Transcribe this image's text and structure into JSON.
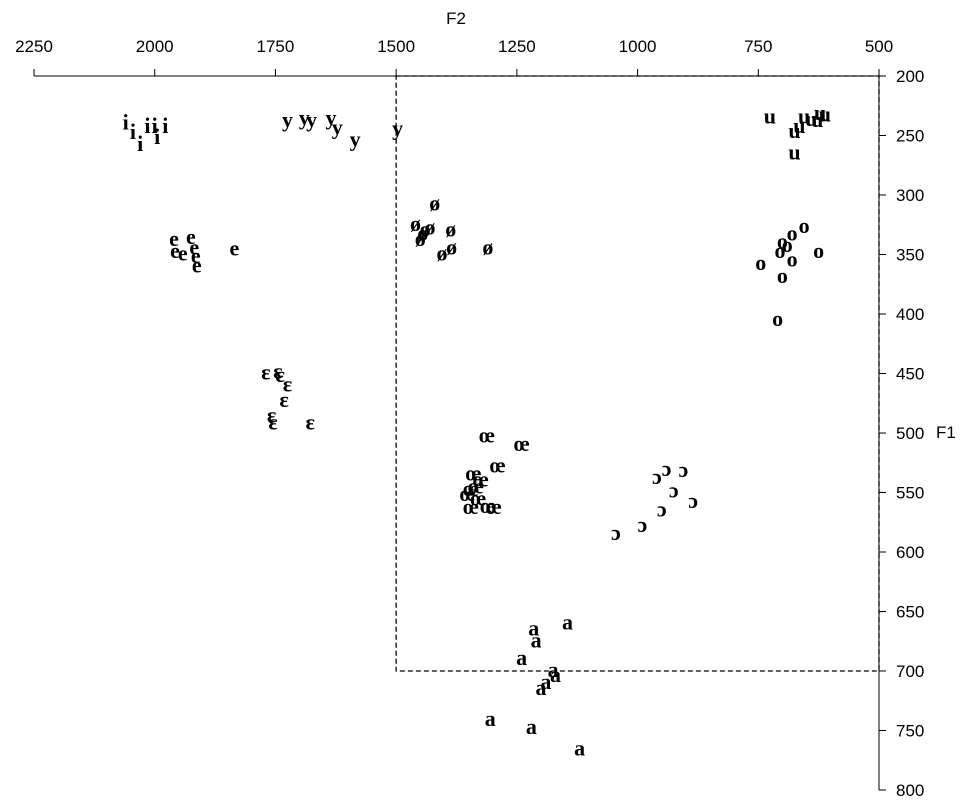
{
  "chart_data": {
    "type": "scatter",
    "title": "",
    "xlabel": "F2",
    "ylabel": "F1",
    "xlim": [
      2250,
      500
    ],
    "ylim": [
      200,
      800
    ],
    "x_reversed": true,
    "y_reversed": true,
    "x_axis_position": "top",
    "y_axis_position": "right",
    "grid": false,
    "legend": "none",
    "x_ticks": [
      "2250",
      "2000",
      "1750",
      "1500",
      "1250",
      "1000",
      "750",
      "500"
    ],
    "y_ticks": [
      "200",
      "250",
      "300",
      "350",
      "400",
      "450",
      "500",
      "550",
      "600",
      "650",
      "700",
      "750",
      "800"
    ],
    "region": {
      "f2_range": [
        1500,
        500
      ],
      "f1_range": [
        200,
        700
      ],
      "style": "dashed"
    },
    "points": [
      {
        "label": "i",
        "f2": 2060,
        "f1": 240
      },
      {
        "label": "i",
        "f2": 2045,
        "f1": 248
      },
      {
        "label": "i",
        "f2": 2030,
        "f1": 258
      },
      {
        "label": "i",
        "f2": 2015,
        "f1": 243
      },
      {
        "label": "i",
        "f2": 2000,
        "f1": 243
      },
      {
        "label": "i",
        "f2": 1995,
        "f1": 252
      },
      {
        "label": "i",
        "f2": 1978,
        "f1": 243
      },
      {
        "label": "y",
        "f2": 1725,
        "f1": 238
      },
      {
        "label": "y",
        "f2": 1690,
        "f1": 236
      },
      {
        "label": "y",
        "f2": 1675,
        "f1": 238
      },
      {
        "label": "y",
        "f2": 1635,
        "f1": 236
      },
      {
        "label": "y",
        "f2": 1622,
        "f1": 244
      },
      {
        "label": "y",
        "f2": 1585,
        "f1": 254
      },
      {
        "label": "y",
        "f2": 1497,
        "f1": 245
      },
      {
        "label": "e",
        "f2": 1960,
        "f1": 338
      },
      {
        "label": "e",
        "f2": 1958,
        "f1": 348
      },
      {
        "label": "e",
        "f2": 1942,
        "f1": 350
      },
      {
        "label": "e",
        "f2": 1925,
        "f1": 336
      },
      {
        "label": "e",
        "f2": 1918,
        "f1": 345
      },
      {
        "label": "e",
        "f2": 1915,
        "f1": 352
      },
      {
        "label": "e",
        "f2": 1913,
        "f1": 360
      },
      {
        "label": "e",
        "f2": 1835,
        "f1": 346
      },
      {
        "label": "ø",
        "f2": 1460,
        "f1": 325
      },
      {
        "label": "ø",
        "f2": 1420,
        "f1": 308
      },
      {
        "label": "ø",
        "f2": 1387,
        "f1": 330
      },
      {
        "label": "ø",
        "f2": 1385,
        "f1": 345
      },
      {
        "label": "ø",
        "f2": 1310,
        "f1": 345
      },
      {
        "label": "ø",
        "f2": 1405,
        "f1": 350
      },
      {
        "label": "ø",
        "f2": 1430,
        "f1": 328
      },
      {
        "label": "ø",
        "f2": 1440,
        "f1": 330
      },
      {
        "label": "ø",
        "f2": 1445,
        "f1": 333
      },
      {
        "label": "ø",
        "f2": 1450,
        "f1": 338
      },
      {
        "label": "u",
        "f2": 726,
        "f1": 235
      },
      {
        "label": "u",
        "f2": 675,
        "f1": 247
      },
      {
        "label": "u",
        "f2": 665,
        "f1": 243
      },
      {
        "label": "u",
        "f2": 655,
        "f1": 235
      },
      {
        "label": "u",
        "f2": 640,
        "f1": 237
      },
      {
        "label": "u",
        "f2": 628,
        "f1": 238
      },
      {
        "label": "u",
        "f2": 622,
        "f1": 232
      },
      {
        "label": "u",
        "f2": 612,
        "f1": 233
      },
      {
        "label": "u",
        "f2": 675,
        "f1": 265
      },
      {
        "label": "o",
        "f2": 655,
        "f1": 327
      },
      {
        "label": "o",
        "f2": 680,
        "f1": 333
      },
      {
        "label": "o",
        "f2": 700,
        "f1": 340
      },
      {
        "label": "o",
        "f2": 690,
        "f1": 343
      },
      {
        "label": "o",
        "f2": 705,
        "f1": 348
      },
      {
        "label": "o",
        "f2": 680,
        "f1": 355
      },
      {
        "label": "o",
        "f2": 745,
        "f1": 358
      },
      {
        "label": "o",
        "f2": 625,
        "f1": 348
      },
      {
        "label": "o",
        "f2": 700,
        "f1": 369
      },
      {
        "label": "o",
        "f2": 710,
        "f1": 405
      },
      {
        "label": "ɛ",
        "f2": 1770,
        "f1": 450
      },
      {
        "label": "ɛ",
        "f2": 1745,
        "f1": 449
      },
      {
        "label": "ɛ",
        "f2": 1740,
        "f1": 452
      },
      {
        "label": "ɛ",
        "f2": 1725,
        "f1": 460
      },
      {
        "label": "ɛ",
        "f2": 1732,
        "f1": 473
      },
      {
        "label": "ɛ",
        "f2": 1758,
        "f1": 486
      },
      {
        "label": "ɛ",
        "f2": 1755,
        "f1": 492
      },
      {
        "label": "ɛ",
        "f2": 1678,
        "f1": 492
      },
      {
        "label": "œ",
        "f2": 1312,
        "f1": 503
      },
      {
        "label": "œ",
        "f2": 1240,
        "f1": 510
      },
      {
        "label": "œ",
        "f2": 1290,
        "f1": 528
      },
      {
        "label": "œ",
        "f2": 1340,
        "f1": 535
      },
      {
        "label": "œ",
        "f2": 1325,
        "f1": 540
      },
      {
        "label": "œ",
        "f2": 1335,
        "f1": 546
      },
      {
        "label": "œ",
        "f2": 1345,
        "f1": 548
      },
      {
        "label": "œ",
        "f2": 1352,
        "f1": 552
      },
      {
        "label": "œ",
        "f2": 1330,
        "f1": 556
      },
      {
        "label": "œ",
        "f2": 1345,
        "f1": 563
      },
      {
        "label": "œ",
        "f2": 1310,
        "f1": 562
      },
      {
        "label": "œ",
        "f2": 1298,
        "f1": 563
      },
      {
        "label": "ɔ",
        "f2": 960,
        "f1": 538
      },
      {
        "label": "ɔ",
        "f2": 940,
        "f1": 531
      },
      {
        "label": "ɔ",
        "f2": 925,
        "f1": 549
      },
      {
        "label": "ɔ",
        "f2": 905,
        "f1": 532
      },
      {
        "label": "ɔ",
        "f2": 885,
        "f1": 558
      },
      {
        "label": "ɔ",
        "f2": 950,
        "f1": 565
      },
      {
        "label": "ɔ",
        "f2": 990,
        "f1": 578
      },
      {
        "label": "ɔ",
        "f2": 1045,
        "f1": 585
      },
      {
        "label": "a",
        "f2": 1145,
        "f1": 660
      },
      {
        "label": "a",
        "f2": 1215,
        "f1": 665
      },
      {
        "label": "a",
        "f2": 1210,
        "f1": 675
      },
      {
        "label": "a",
        "f2": 1240,
        "f1": 690
      },
      {
        "label": "a",
        "f2": 1175,
        "f1": 700
      },
      {
        "label": "a",
        "f2": 1170,
        "f1": 704
      },
      {
        "label": "a",
        "f2": 1190,
        "f1": 710
      },
      {
        "label": "a",
        "f2": 1200,
        "f1": 715
      },
      {
        "label": "a",
        "f2": 1305,
        "f1": 741
      },
      {
        "label": "a",
        "f2": 1220,
        "f1": 748
      },
      {
        "label": "a",
        "f2": 1120,
        "f1": 766
      }
    ]
  }
}
